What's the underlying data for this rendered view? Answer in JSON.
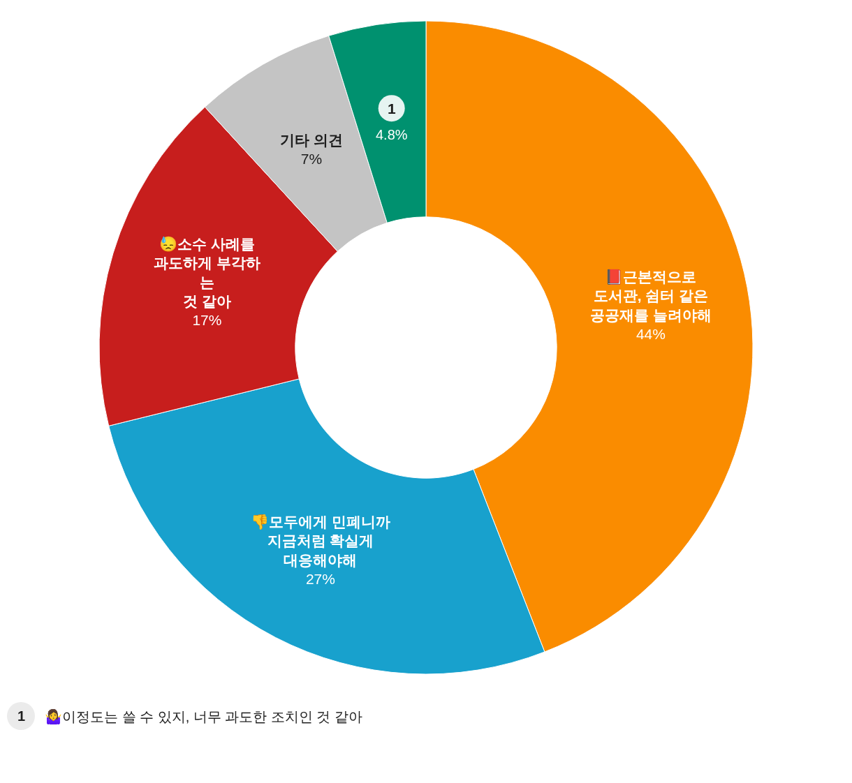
{
  "chart_data": {
    "type": "donut",
    "categories": [
      "📕근본적으로\n도서관, 쉼터 같은\n공공재를 늘려야해",
      "👎모두에게 민폐니까\n지금처럼 확실게\n대응해야해",
      "😓소수 사례를\n과도하게 부각하\n는\n것 같아",
      "기타 의견",
      "1"
    ],
    "values": [
      44,
      27,
      17,
      7,
      4.8
    ],
    "colors": [
      "#fa8c00",
      "#18a1cd",
      "#c71e1d",
      "#c4c4c4",
      "#00916f"
    ],
    "value_labels": [
      "44%",
      "27%",
      "17%",
      "7%",
      "4.8%"
    ],
    "annotations": [
      "1",
      "🤷‍♀️이정도는 쓸 수 있지, 너무 과도한 조치인 것 같아"
    ],
    "legend": false
  }
}
